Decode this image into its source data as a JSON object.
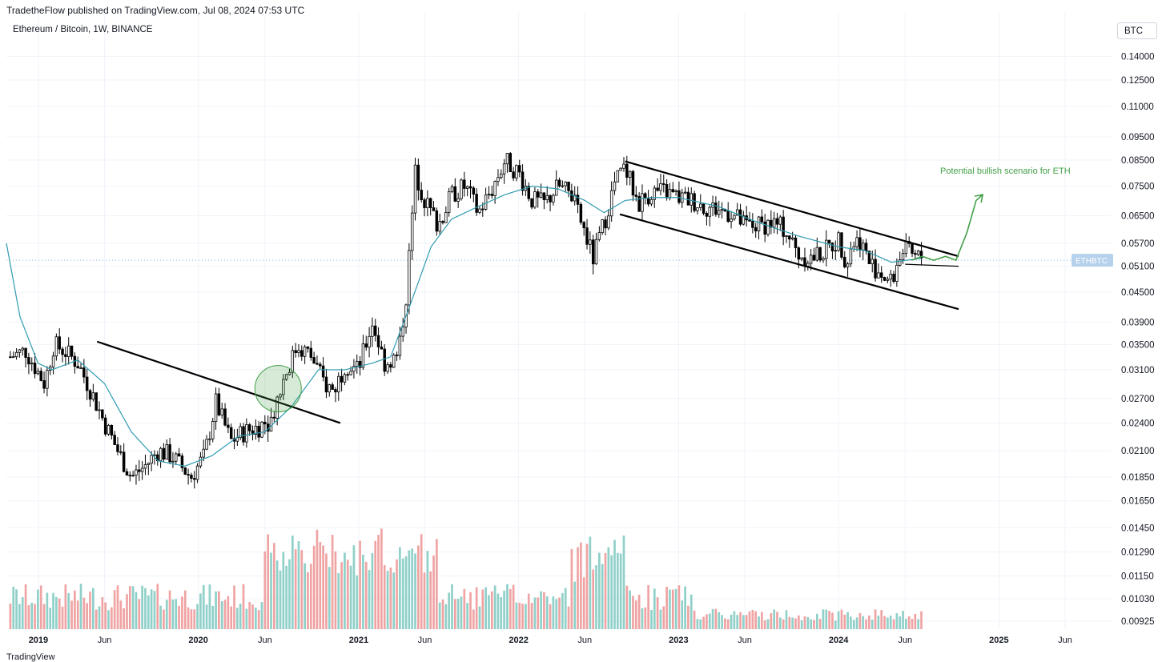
{
  "header": {
    "published": "TradetheFlow published on TradingView.com, Jul 08, 2024 07:53 UTC"
  },
  "symbol": {
    "title": "Ethereum / Bitcoin, 1W, BINANCE"
  },
  "currency": "BTC",
  "price_label": "ETHBTC",
  "footer": {
    "logo_text": "TradingView"
  },
  "colors": {
    "candle": "#000000",
    "ma": "#2e9bb0",
    "vol_up": "#8fd0c8",
    "vol_down": "#f0a3a3",
    "bullish": "#43a047",
    "price_line": "#7fb0d8",
    "price_label_bg": "#b6d1ec"
  },
  "chart_data": {
    "type": "candlestick",
    "title": "Ethereum / Bitcoin, 1W, BINANCE",
    "y_scale": "log",
    "ylim": [
      0.0089,
      0.148
    ],
    "y_ticks": [
      "0.14000",
      "0.12500",
      "0.11000",
      "0.09500",
      "0.08500",
      "0.07500",
      "0.06500",
      "0.05700",
      "0.05100",
      "0.04500",
      "0.03900",
      "0.03500",
      "0.03100",
      "0.02700",
      "0.02400",
      "0.02100",
      "0.01850",
      "0.01650",
      "0.01450",
      "0.01290",
      "0.01150",
      "0.01030",
      "0.00925"
    ],
    "x_ticks": [
      {
        "label": "2019",
        "date": "2019-01-01",
        "year": true
      },
      {
        "label": "Jun",
        "date": "2019-06-01",
        "year": false
      },
      {
        "label": "2020",
        "date": "2020-01-01",
        "year": true
      },
      {
        "label": "Jun",
        "date": "2020-06-01",
        "year": false
      },
      {
        "label": "2021",
        "date": "2021-01-01",
        "year": true
      },
      {
        "label": "Jun",
        "date": "2021-06-01",
        "year": false
      },
      {
        "label": "2022",
        "date": "2022-01-01",
        "year": true
      },
      {
        "label": "Jun",
        "date": "2022-06-01",
        "year": false
      },
      {
        "label": "2023",
        "date": "2023-01-01",
        "year": true
      },
      {
        "label": "Jun",
        "date": "2023-06-01",
        "year": false
      },
      {
        "label": "2024",
        "date": "2024-01-01",
        "year": true
      },
      {
        "label": "Jun",
        "date": "2024-06-01",
        "year": false
      },
      {
        "label": "2025",
        "date": "2025-01-01",
        "year": true
      },
      {
        "label": "Jun",
        "date": "2025-06-01",
        "year": false
      }
    ],
    "xlim": [
      "2018-10-20",
      "2025-09-15"
    ],
    "close_path": [
      [
        "2018-10-29",
        0.033
      ],
      [
        "2018-12-03",
        0.034
      ],
      [
        "2019-01-15",
        0.029
      ],
      [
        "2019-02-05",
        0.035
      ],
      [
        "2019-03-01",
        0.034
      ],
      [
        "2019-04-01",
        0.032
      ],
      [
        "2019-05-01",
        0.028
      ],
      [
        "2019-06-01",
        0.024
      ],
      [
        "2019-07-01",
        0.021
      ],
      [
        "2019-08-01",
        0.0185
      ],
      [
        "2019-09-01",
        0.0195
      ],
      [
        "2019-10-01",
        0.021
      ],
      [
        "2019-11-01",
        0.0205
      ],
      [
        "2019-12-15",
        0.0185
      ],
      [
        "2020-01-15",
        0.0205
      ],
      [
        "2020-02-10",
        0.0265
      ],
      [
        "2020-03-15",
        0.022
      ],
      [
        "2020-04-15",
        0.023
      ],
      [
        "2020-05-15",
        0.0235
      ],
      [
        "2020-06-15",
        0.0245
      ],
      [
        "2020-07-15",
        0.03
      ],
      [
        "2020-08-15",
        0.035
      ],
      [
        "2020-09-15",
        0.033
      ],
      [
        "2020-10-15",
        0.029
      ],
      [
        "2020-11-05",
        0.028
      ],
      [
        "2020-12-01",
        0.032
      ],
      [
        "2020-12-31",
        0.031
      ],
      [
        "2021-02-01",
        0.039
      ],
      [
        "2021-03-01",
        0.032
      ],
      [
        "2021-04-01",
        0.033
      ],
      [
        "2021-04-20",
        0.045
      ],
      [
        "2021-05-10",
        0.08
      ],
      [
        "2021-06-01",
        0.07
      ],
      [
        "2021-07-01",
        0.062
      ],
      [
        "2021-08-01",
        0.072
      ],
      [
        "2021-09-01",
        0.075
      ],
      [
        "2021-10-01",
        0.066
      ],
      [
        "2021-11-01",
        0.074
      ],
      [
        "2021-12-01",
        0.085
      ],
      [
        "2022-01-01",
        0.08
      ],
      [
        "2022-02-01",
        0.07
      ],
      [
        "2022-03-01",
        0.069
      ],
      [
        "2022-04-01",
        0.075
      ],
      [
        "2022-05-01",
        0.072
      ],
      [
        "2022-06-01",
        0.06
      ],
      [
        "2022-06-20",
        0.053
      ],
      [
        "2022-07-15",
        0.063
      ],
      [
        "2022-08-10",
        0.077
      ],
      [
        "2022-09-01",
        0.082
      ],
      [
        "2022-10-01",
        0.069
      ],
      [
        "2022-11-01",
        0.073
      ],
      [
        "2022-12-01",
        0.073
      ],
      [
        "2023-01-01",
        0.071
      ],
      [
        "2023-02-01",
        0.07
      ],
      [
        "2023-03-01",
        0.068
      ],
      [
        "2023-04-01",
        0.067
      ],
      [
        "2023-05-01",
        0.066
      ],
      [
        "2023-06-01",
        0.062
      ],
      [
        "2023-07-01",
        0.062
      ],
      [
        "2023-08-01",
        0.063
      ],
      [
        "2023-09-01",
        0.061
      ],
      [
        "2023-10-01",
        0.054
      ],
      [
        "2023-11-01",
        0.053
      ],
      [
        "2023-12-01",
        0.055
      ],
      [
        "2024-01-01",
        0.058
      ],
      [
        "2024-01-20",
        0.052
      ],
      [
        "2024-02-01",
        0.057
      ],
      [
        "2024-02-20",
        0.058
      ],
      [
        "2024-03-10",
        0.052
      ],
      [
        "2024-04-01",
        0.05
      ],
      [
        "2024-05-01",
        0.047
      ],
      [
        "2024-05-20",
        0.054
      ],
      [
        "2024-06-01",
        0.055
      ],
      [
        "2024-06-25",
        0.053
      ],
      [
        "2024-07-08",
        0.0535
      ]
    ],
    "ma_path": [
      [
        "2018-10-20",
        0.057
      ],
      [
        "2018-11-20",
        0.04
      ],
      [
        "2018-12-31",
        0.032
      ],
      [
        "2019-02-01",
        0.031
      ],
      [
        "2019-04-01",
        0.0325
      ],
      [
        "2019-06-01",
        0.029
      ],
      [
        "2019-08-01",
        0.023
      ],
      [
        "2019-10-01",
        0.02
      ],
      [
        "2019-12-01",
        0.0195
      ],
      [
        "2020-02-01",
        0.0205
      ],
      [
        "2020-04-01",
        0.0225
      ],
      [
        "2020-06-01",
        0.023
      ],
      [
        "2020-08-01",
        0.026
      ],
      [
        "2020-10-01",
        0.031
      ],
      [
        "2020-12-01",
        0.031
      ],
      [
        "2021-02-01",
        0.032
      ],
      [
        "2021-03-15",
        0.033
      ],
      [
        "2021-05-01",
        0.043
      ],
      [
        "2021-06-15",
        0.056
      ],
      [
        "2021-08-01",
        0.064
      ],
      [
        "2021-10-01",
        0.068
      ],
      [
        "2021-12-01",
        0.072
      ],
      [
        "2022-02-01",
        0.075
      ],
      [
        "2022-04-01",
        0.074
      ],
      [
        "2022-06-01",
        0.07
      ],
      [
        "2022-07-15",
        0.066
      ],
      [
        "2022-09-01",
        0.07
      ],
      [
        "2022-11-01",
        0.071
      ],
      [
        "2023-01-01",
        0.071
      ],
      [
        "2023-04-01",
        0.068
      ],
      [
        "2023-07-01",
        0.063
      ],
      [
        "2023-10-01",
        0.059
      ],
      [
        "2024-01-01",
        0.056
      ],
      [
        "2024-03-01",
        0.055
      ],
      [
        "2024-05-01",
        0.052
      ],
      [
        "2024-07-08",
        0.053
      ]
    ],
    "trendlines": [
      {
        "name": "downtrend-2019",
        "from": [
          "2019-05-15",
          0.0355
        ],
        "to": [
          "2020-11-20",
          0.024
        ]
      },
      {
        "name": "channel-upper",
        "from": [
          "2022-09-01",
          0.0845
        ],
        "to": [
          "2024-10-01",
          0.0535
        ]
      },
      {
        "name": "channel-lower",
        "from": [
          "2022-08-20",
          0.0655
        ],
        "to": [
          "2024-10-01",
          0.0415
        ]
      },
      {
        "name": "range-line",
        "from": [
          "2024-06-01",
          0.0515
        ],
        "to": [
          "2024-10-01",
          0.051
        ]
      }
    ],
    "breakout_circle": {
      "date": "2020-07-01",
      "value": 0.0283
    },
    "bullish_path": [
      [
        "2024-06-15",
        0.0525
      ],
      [
        "2024-07-10",
        0.0535
      ],
      [
        "2024-08-05",
        0.0525
      ],
      [
        "2024-09-01",
        0.0535
      ],
      [
        "2024-09-25",
        0.0525
      ],
      [
        "2024-10-20",
        0.06
      ],
      [
        "2024-11-10",
        0.07
      ],
      [
        "2024-11-25",
        0.072
      ]
    ],
    "annotation": "Potential bullish scenario for ETH",
    "current_price": 0.0525,
    "volume_from": "2018-10-29",
    "volume_to": "2024-07-08"
  }
}
